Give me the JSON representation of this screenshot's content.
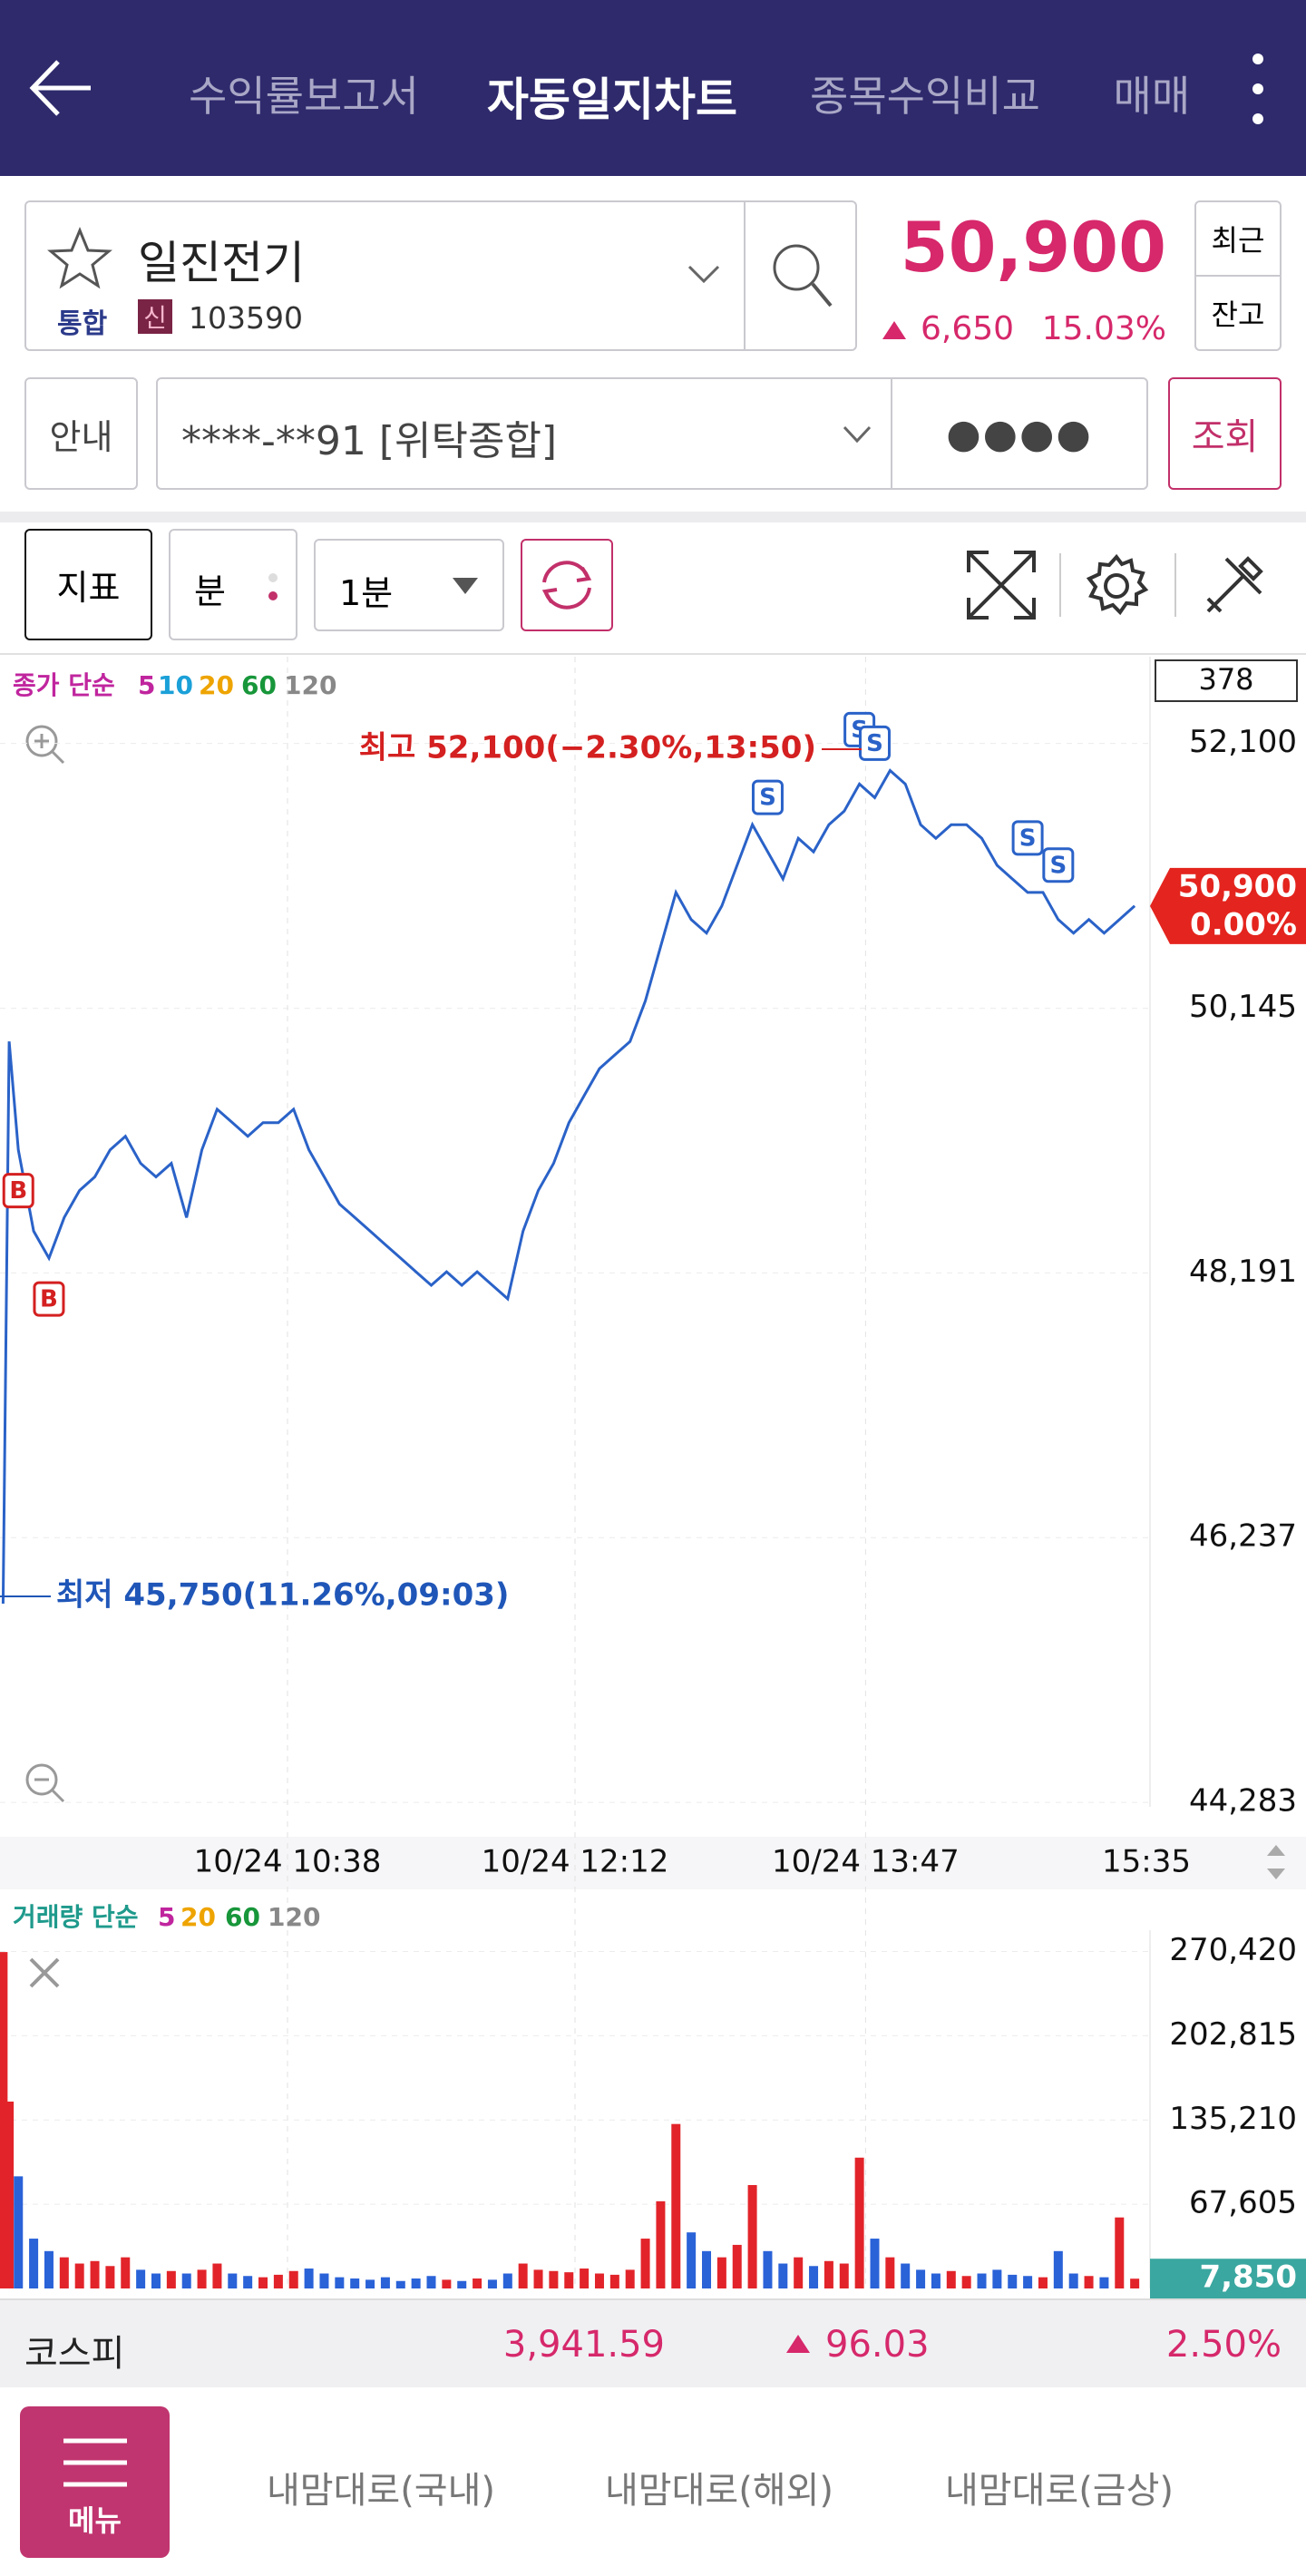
{
  "nav": {
    "tabs": [
      "수익률보고서",
      "자동일지차트",
      "종목수익비교",
      "매매"
    ],
    "active": 1
  },
  "stock": {
    "name": "일진전기",
    "market": "통합",
    "credit": "신",
    "code": "103590",
    "price": "50,900",
    "change": "6,650",
    "change_rate": "15.03%",
    "buttons": [
      "최근",
      "잔고"
    ]
  },
  "account": {
    "guide": "안내",
    "number": "****-**91 [위탁종합]",
    "password": "●●●●",
    "query": "조회"
  },
  "toolbar": {
    "indicator": "지표",
    "period_unit": "분",
    "interval": "1분"
  },
  "chart_data": [
    {
      "type": "line",
      "legend": {
        "label": "종가 단순",
        "color": "#c0259e",
        "periods": [
          {
            "name": "5",
            "color": "#c0259e"
          },
          {
            "name": "10",
            "color": "#1ba0d8"
          },
          {
            "name": "20",
            "color": "#eea400"
          },
          {
            "name": "60",
            "color": "#17963a"
          },
          {
            "name": "120",
            "color": "#888888"
          }
        ]
      },
      "visible_count": 378,
      "x": [
        "09:05",
        "09:07",
        "09:10",
        "09:15",
        "09:20",
        "09:25",
        "09:30",
        "09:35",
        "09:40",
        "09:45",
        "09:50",
        "09:55",
        "10:00",
        "10:05",
        "10:10",
        "10:15",
        "10:20",
        "10:25",
        "10:30",
        "10:35",
        "10:40",
        "10:45",
        "10:50",
        "10:55",
        "11:00",
        "11:05",
        "11:10",
        "11:15",
        "11:20",
        "11:25",
        "11:30",
        "11:35",
        "11:40",
        "11:45",
        "11:50",
        "11:55",
        "12:00",
        "12:05",
        "12:10",
        "12:15",
        "12:20",
        "12:25",
        "12:30",
        "12:35",
        "12:40",
        "12:45",
        "12:50",
        "12:55",
        "13:00",
        "13:05",
        "13:10",
        "13:15",
        "13:20",
        "13:25",
        "13:30",
        "13:35",
        "13:40",
        "13:45",
        "13:50",
        "13:55",
        "14:00",
        "14:05",
        "14:10",
        "14:15",
        "14:20",
        "14:25",
        "14:30",
        "14:35",
        "14:40",
        "14:45",
        "14:50",
        "14:55",
        "15:00",
        "15:05",
        "15:10",
        "15:15"
      ],
      "values": [
        45750,
        49900,
        49100,
        48500,
        48300,
        48600,
        48800,
        48900,
        49100,
        49200,
        49000,
        48900,
        49000,
        48600,
        49100,
        49400,
        49300,
        49200,
        49300,
        49300,
        49400,
        49100,
        48900,
        48700,
        48600,
        48500,
        48400,
        48300,
        48200,
        48100,
        48200,
        48100,
        48200,
        48100,
        48000,
        48500,
        48800,
        49000,
        49300,
        49500,
        49700,
        49800,
        49900,
        50200,
        50600,
        51000,
        50800,
        50700,
        50900,
        51200,
        51500,
        51300,
        51100,
        51400,
        51300,
        51500,
        51600,
        51800,
        51700,
        51900,
        51800,
        51500,
        51400,
        51500,
        51500,
        51400,
        51200,
        51100,
        51000,
        51000,
        50800,
        50700,
        50800,
        50700,
        50800,
        50900
      ],
      "color": "#2a62c8",
      "xlim": [
        "09:04",
        "15:20"
      ],
      "ylim": [
        44250,
        52680
      ],
      "yticks": [
        {
          "value": 44283,
          "label": "44,283"
        },
        {
          "value": 46237,
          "label": "46,237"
        },
        {
          "value": 48191,
          "label": "48,191"
        },
        {
          "value": 50145,
          "label": "50,145"
        },
        {
          "value": 52100,
          "label": "52,100"
        }
      ],
      "xticks": [
        {
          "value": "10:38",
          "label": "10/24 10:38"
        },
        {
          "value": "12:12",
          "label": "10/24 12:12"
        },
        {
          "value": "13:47",
          "label": "10/24 13:47"
        }
      ],
      "x_end_label": "15:35",
      "grid": true,
      "last_price": {
        "value": 50900,
        "label": "50,900"
      },
      "last_change": "0.00%",
      "tag_color": "#e4241e",
      "high_note": "최고 52,100(−2.30%,13:50)",
      "low_note": "최저 45,750(11.26%,09:03)",
      "signals": [
        {
          "x": "09:10",
          "label": "B"
        },
        {
          "x": "09:20",
          "label": "B"
        },
        {
          "x": "13:15",
          "label": "S"
        },
        {
          "x": "13:45",
          "label": "S"
        },
        {
          "x": "13:50",
          "label": "S"
        },
        {
          "x": "14:40",
          "label": "S"
        },
        {
          "x": "14:50",
          "label": "S"
        }
      ]
    },
    {
      "type": "bar",
      "legend": {
        "label": "거래량 단순",
        "color": "#1f9a8c",
        "periods": [
          {
            "name": "5",
            "color": "#c0259e"
          },
          {
            "name": "20",
            "color": "#eea400"
          },
          {
            "name": "60",
            "color": "#17963a"
          },
          {
            "name": "120",
            "color": "#888888"
          }
        ]
      },
      "x": [
        "09:05",
        "09:07",
        "09:10",
        "09:15",
        "09:20",
        "09:25",
        "09:30",
        "09:35",
        "09:40",
        "09:45",
        "09:50",
        "09:55",
        "10:00",
        "10:05",
        "10:10",
        "10:15",
        "10:20",
        "10:25",
        "10:30",
        "10:35",
        "10:40",
        "10:45",
        "10:50",
        "10:55",
        "11:00",
        "11:05",
        "11:10",
        "11:15",
        "11:20",
        "11:25",
        "11:30",
        "11:35",
        "11:40",
        "11:45",
        "11:50",
        "11:55",
        "12:00",
        "12:05",
        "12:10",
        "12:15",
        "12:20",
        "12:25",
        "12:30",
        "12:35",
        "12:40",
        "12:45",
        "12:50",
        "12:55",
        "13:00",
        "13:05",
        "13:10",
        "13:15",
        "13:20",
        "13:25",
        "13:30",
        "13:35",
        "13:40",
        "13:45",
        "13:50",
        "13:55",
        "14:00",
        "14:05",
        "14:10",
        "14:15",
        "14:20",
        "14:25",
        "14:30",
        "14:35",
        "14:40",
        "14:45",
        "14:50",
        "14:55",
        "15:00",
        "15:05",
        "15:10",
        "15:15"
      ],
      "values": [
        270000,
        150000,
        90000,
        40000,
        30000,
        25000,
        20000,
        22000,
        18000,
        25000,
        15000,
        12000,
        14000,
        12000,
        15000,
        20000,
        12000,
        10000,
        9000,
        11000,
        14000,
        16000,
        12000,
        9000,
        8000,
        7000,
        9000,
        6000,
        8000,
        10000,
        7000,
        6000,
        8000,
        7000,
        12000,
        20000,
        15000,
        14000,
        13000,
        16000,
        12000,
        11000,
        15000,
        40000,
        70000,
        132000,
        45000,
        30000,
        25000,
        35000,
        83000,
        30000,
        20000,
        25000,
        18000,
        22000,
        20000,
        105000,
        40000,
        25000,
        20000,
        15000,
        12000,
        14000,
        10000,
        12000,
        15000,
        11000,
        10000,
        9000,
        30000,
        12000,
        10000,
        9000,
        57000,
        7850
      ],
      "up_color": "#e2242a",
      "down_color": "#2a62d8",
      "xlim": [
        "09:04",
        "15:20"
      ],
      "ylim": [
        0,
        281000
      ],
      "yticks": [
        {
          "value": 67605,
          "label": "67,605"
        },
        {
          "value": 135210,
          "label": "135,210"
        },
        {
          "value": 202815,
          "label": "202,815"
        },
        {
          "value": 270420,
          "label": "270,420"
        }
      ],
      "last_value": {
        "value": 7850,
        "label": "7,850"
      },
      "tag_color": "#3aa7a0"
    }
  ],
  "index_bar": {
    "name": "코스피",
    "value": "3,941.59",
    "change": "96.03",
    "rate": "2.50%"
  },
  "bottom_nav": {
    "menu": "메뉴",
    "tabs": [
      "내맘대로(국내)",
      "내맘대로(해외)",
      "내맘대로(금상)"
    ]
  }
}
